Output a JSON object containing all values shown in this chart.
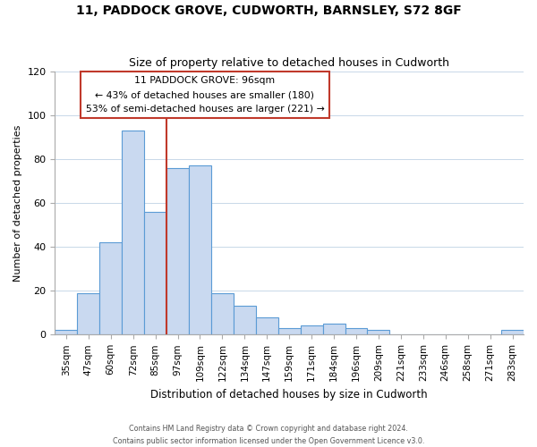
{
  "title": "11, PADDOCK GROVE, CUDWORTH, BARNSLEY, S72 8GF",
  "subtitle": "Size of property relative to detached houses in Cudworth",
  "xlabel": "Distribution of detached houses by size in Cudworth",
  "ylabel": "Number of detached properties",
  "categories": [
    "35sqm",
    "47sqm",
    "60sqm",
    "72sqm",
    "85sqm",
    "97sqm",
    "109sqm",
    "122sqm",
    "134sqm",
    "147sqm",
    "159sqm",
    "171sqm",
    "184sqm",
    "196sqm",
    "209sqm",
    "221sqm",
    "233sqm",
    "246sqm",
    "258sqm",
    "271sqm",
    "283sqm"
  ],
  "values": [
    2,
    19,
    42,
    93,
    56,
    76,
    77,
    19,
    13,
    8,
    3,
    4,
    5,
    3,
    2,
    0,
    0,
    0,
    0,
    0,
    2
  ],
  "bar_color": "#c9d9f0",
  "bar_edge_color": "#5b9bd5",
  "vline_x_index": 5,
  "vline_color": "#c0392b",
  "annotation_title": "11 PADDOCK GROVE: 96sqm",
  "annotation_line1": "← 43% of detached houses are smaller (180)",
  "annotation_line2": "53% of semi-detached houses are larger (221) →",
  "annotation_box_color": "#c0392b",
  "ylim": [
    0,
    120
  ],
  "yticks": [
    0,
    20,
    40,
    60,
    80,
    100,
    120
  ],
  "footer1": "Contains HM Land Registry data © Crown copyright and database right 2024.",
  "footer2": "Contains public sector information licensed under the Open Government Licence v3.0."
}
